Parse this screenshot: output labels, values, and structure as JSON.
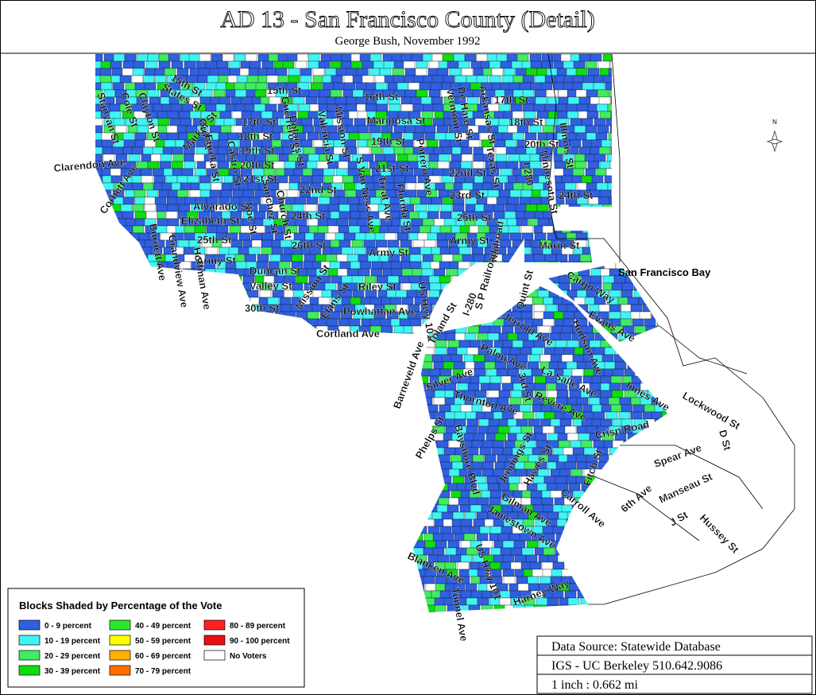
{
  "header": {
    "title": "AD 13 - San Francisco County (Detail)",
    "subtitle": "George Bush, November 1992"
  },
  "map": {
    "north": "N",
    "water_label": "San Francisco Bay",
    "streets": [
      "Stanyan St",
      "Cole St",
      "Clayton St",
      "States St",
      "15th St",
      "Market St",
      "15th St",
      "Ord St",
      "Eureka St",
      "Castro St",
      "17th St",
      "18th St",
      "19th St",
      "20th St",
      "21st St",
      "22nd St",
      "Guerrero St",
      "Dolores St",
      "Valencia St",
      "Mission St",
      "S Van Ness Ave",
      "16th St",
      "Mariposa St",
      "19th St",
      "21st St",
      "Treat Ave",
      "Florida St",
      "Potrero Ave",
      "Vermont St",
      "De Haro St",
      "Arkansas St",
      "17th St",
      "18th St",
      "20th St",
      "22nd St",
      "23rd St",
      "25th St",
      "Texas St",
      "I-280",
      "Minnesota St",
      "Illinois St",
      "24th St",
      "Clarendon Ave",
      "Corbett Ave",
      "Burnett Ave",
      "Hoffman Ave",
      "Grandview Ave",
      "Alvarado St",
      "Elizabeth St",
      "25th St",
      "Army St",
      "Noe St",
      "Sanchez St",
      "Church St",
      "24th St",
      "26th St",
      "Duncan St",
      "Valley St",
      "30th St",
      "Mission St",
      "Elans St",
      "Riley St",
      "Powhattan Ave",
      "Cortland Ave",
      "Army St",
      "Army St",
      "US Hwy 101",
      "Railroad",
      "Marin St",
      "Cargo Way",
      "Evans Ave",
      "Quint St",
      "Jerrold Ave",
      "Hudson Ave",
      "S P Railroad",
      "I-280",
      "Toland St",
      "Barneveld Ave",
      "Palou Ave",
      "Silver Ave",
      "3rd St",
      "La Salle Ave",
      "Innes Ave",
      "Thornton Ave",
      "Revere Ave",
      "Lockwood St",
      "Phelps St",
      "Bayshore Blvd",
      "Crisp Road",
      "Spear Ave",
      "6th Ave",
      "D St",
      "Jennings St",
      "Hawes St",
      "Fitch St",
      "Carroll Ave",
      "Manseau St",
      "Gilman Ave",
      "Jamestown Ave",
      "Hussey St",
      "J St",
      "US Hwy 101",
      "Blanken Ave",
      "Tunnel Ave",
      "Harney Way"
    ]
  },
  "legend": {
    "title": "Blocks Shaded by Percentage of the Vote",
    "items": [
      {
        "label": "0 - 9 percent",
        "color": "#3060e0"
      },
      {
        "label": "10 - 19 percent",
        "color": "#40f4f4"
      },
      {
        "label": "20 - 29 percent",
        "color": "#40ec60"
      },
      {
        "label": "30 - 39 percent",
        "color": "#10dc10"
      },
      {
        "label": "40 - 49 percent",
        "color": "#2ce82c"
      },
      {
        "label": "50 - 59 percent",
        "color": "#ffff00"
      },
      {
        "label": "60 - 69 percent",
        "color": "#ffb000"
      },
      {
        "label": "70 - 79 percent",
        "color": "#ff7000"
      },
      {
        "label": "80 - 89 percent",
        "color": "#ff2020"
      },
      {
        "label": "90 - 100 percent",
        "color": "#e81010"
      },
      {
        "label": "No Voters",
        "color": "#ffffff"
      }
    ]
  },
  "source": {
    "lines": [
      "Data Source: Statewide Database",
      "IGS - UC Berkeley 510.642.9086",
      "1 inch : 0.662 mi"
    ]
  }
}
